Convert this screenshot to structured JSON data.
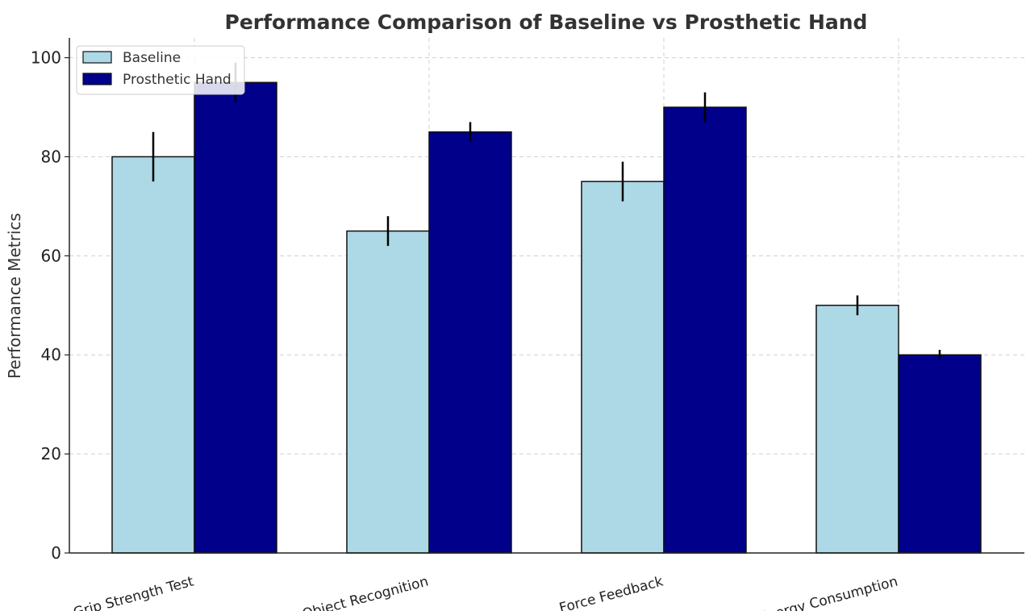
{
  "chart_data": {
    "type": "bar",
    "title": "Performance Comparison of Baseline vs Prosthetic Hand",
    "xlabel": "",
    "ylabel": "Performance Metrics",
    "categories": [
      "Grip Strength Test",
      "Object Recognition",
      "Force Feedback",
      "Energy Consumption"
    ],
    "series": [
      {
        "name": "Baseline",
        "values": [
          80,
          65,
          75,
          50
        ],
        "errors": [
          5,
          3,
          4,
          2
        ],
        "color": "#add8e6"
      },
      {
        "name": "Prosthetic Hand",
        "values": [
          95,
          85,
          90,
          40
        ],
        "errors": [
          4,
          2,
          3,
          1
        ],
        "color": "#00008b"
      }
    ],
    "ylim": [
      0,
      104
    ],
    "yticks": [
      "0",
      "20",
      "40",
      "60",
      "80",
      "100"
    ],
    "grid": true,
    "legend_position": "top-left"
  }
}
